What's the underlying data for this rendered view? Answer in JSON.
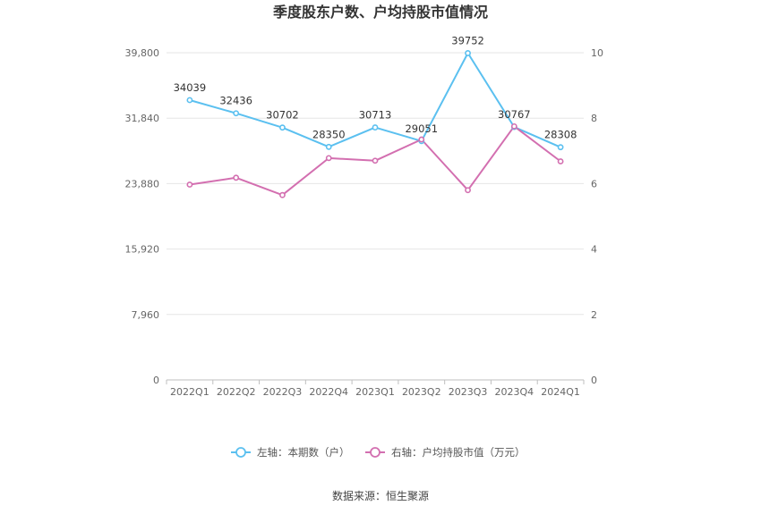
{
  "chart_data": {
    "type": "line",
    "title": "季度股东户数、户均持股市值情况",
    "categories": [
      "2022Q1",
      "2022Q2",
      "2022Q3",
      "2022Q4",
      "2023Q1",
      "2023Q2",
      "2023Q3",
      "2023Q4",
      "2024Q1"
    ],
    "series": [
      {
        "name": "左轴：本期数（户）",
        "axis": "left",
        "color": "#5bc0f0",
        "values": [
          34039,
          32436,
          30702,
          28350,
          30713,
          29051,
          39752,
          30767,
          28308
        ],
        "labels": [
          "34039",
          "32436",
          "30702",
          "28350",
          "30713",
          "29051",
          "39752",
          "30767",
          "28308"
        ]
      },
      {
        "name": "右轴：户均持股市值（万元）",
        "axis": "right",
        "color": "#d36fb0",
        "values": [
          5.97,
          6.18,
          5.65,
          6.78,
          6.7,
          7.35,
          5.8,
          7.75,
          6.68
        ]
      }
    ],
    "left_axis": {
      "ylim": [
        0,
        39800
      ],
      "ticks": [
        "0",
        "7,960",
        "15,920",
        "23,880",
        "31,840",
        "39,800"
      ],
      "tick_values": [
        0,
        7960,
        15920,
        23880,
        31840,
        39800
      ]
    },
    "right_axis": {
      "ylim": [
        0,
        10
      ],
      "ticks": [
        "0",
        "2",
        "4",
        "6",
        "8",
        "10"
      ],
      "tick_values": [
        0,
        2,
        4,
        6,
        8,
        10
      ]
    },
    "grid": true,
    "legend_position": "bottom"
  },
  "footer": {
    "source": "数据来源：恒生聚源"
  }
}
